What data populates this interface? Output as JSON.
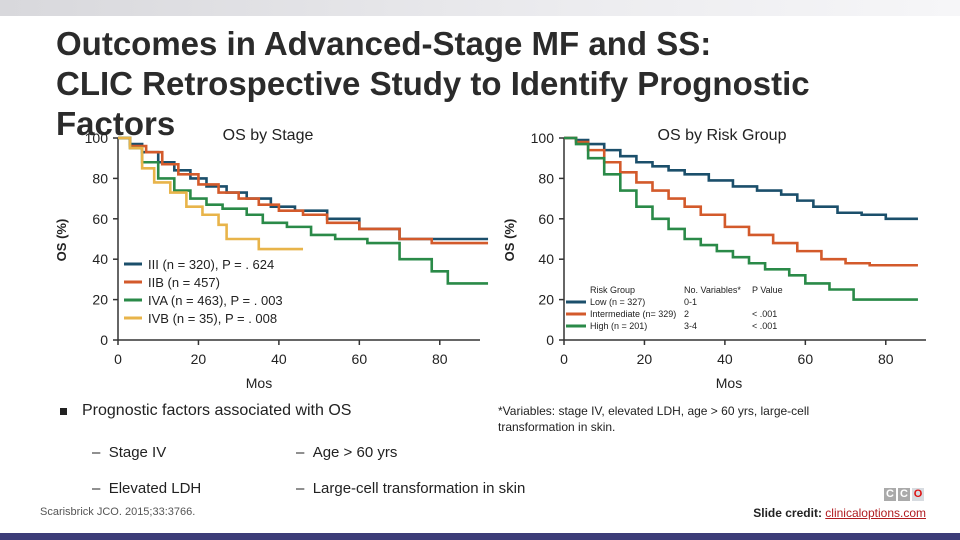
{
  "slide": {
    "title_line1": "Outcomes in Advanced-Stage MF and SS:",
    "title_line2": "CLIC Retrospective Study to Identify Prognostic Factors",
    "bullet_main": "Prognostic factors associated with OS",
    "sub_items": [
      "Stage IV",
      "Elevated LDH",
      "Age > 60 yrs",
      "Large-cell transformation in skin"
    ],
    "footnote": "*Variables: stage IV, elevated LDH, age > 60 yrs, large-cell transformation in skin.",
    "citation": "Scarisbrick JCO. 2015;33:3766.",
    "credit_label": "Slide credit:",
    "credit_link": "clinicaloptions.com",
    "logo_letters": [
      "C",
      "C",
      "O"
    ]
  },
  "colors": {
    "teal": "#1b4f6b",
    "orange": "#d35a2b",
    "green": "#2a8a48",
    "gold": "#e8b44a"
  },
  "chart_data": [
    {
      "type": "line",
      "title": "OS by Stage",
      "xlabel": "Mos",
      "ylabel": "OS (%)",
      "xlim": [
        0,
        90
      ],
      "ylim": [
        0,
        100
      ],
      "xticks": [
        0,
        20,
        40,
        60,
        80
      ],
      "yticks": [
        0,
        20,
        40,
        60,
        80,
        100
      ],
      "legend": [
        "III (n = 320), P = . 624",
        "IIB (n = 457)",
        "IVA (n = 463), P = . 003",
        "IVB (n = 35), P = . 008"
      ],
      "series": [
        {
          "name": "III (n = 320), P = . 624",
          "color": "#1b4f6b",
          "points": [
            [
              0,
              100
            ],
            [
              3,
              97
            ],
            [
              6,
              93
            ],
            [
              10,
              88
            ],
            [
              14,
              84
            ],
            [
              18,
              80
            ],
            [
              22,
              76
            ],
            [
              27,
              73
            ],
            [
              32,
              70
            ],
            [
              38,
              66
            ],
            [
              44,
              64
            ],
            [
              52,
              60
            ],
            [
              60,
              55
            ],
            [
              70,
              50
            ],
            [
              81,
              50
            ],
            [
              92,
              50
            ]
          ]
        },
        {
          "name": "IIB (n = 457)",
          "color": "#d35a2b",
          "points": [
            [
              0,
              100
            ],
            [
              3,
              96
            ],
            [
              7,
              93
            ],
            [
              11,
              87
            ],
            [
              15,
              82
            ],
            [
              20,
              77
            ],
            [
              25,
              73
            ],
            [
              30,
              70
            ],
            [
              35,
              67
            ],
            [
              40,
              64
            ],
            [
              46,
              62
            ],
            [
              52,
              58
            ],
            [
              60,
              55
            ],
            [
              70,
              50
            ],
            [
              78,
              48
            ],
            [
              92,
              48
            ]
          ]
        },
        {
          "name": "IVA (n = 463), P = . 003",
          "color": "#2a8a48",
          "points": [
            [
              0,
              100
            ],
            [
              3,
              95
            ],
            [
              6,
              88
            ],
            [
              10,
              80
            ],
            [
              14,
              74
            ],
            [
              18,
              70
            ],
            [
              22,
              67
            ],
            [
              26,
              65
            ],
            [
              32,
              62
            ],
            [
              36,
              58
            ],
            [
              42,
              56
            ],
            [
              48,
              52
            ],
            [
              54,
              50
            ],
            [
              62,
              48
            ],
            [
              70,
              40
            ],
            [
              78,
              34
            ],
            [
              82,
              28
            ],
            [
              92,
              28
            ]
          ]
        },
        {
          "name": "IVB (n = 35), P = . 008",
          "color": "#e8b44a",
          "points": [
            [
              0,
              100
            ],
            [
              3,
              95
            ],
            [
              6,
              85
            ],
            [
              9,
              78
            ],
            [
              13,
              73
            ],
            [
              17,
              66
            ],
            [
              21,
              62
            ],
            [
              25,
              57
            ],
            [
              27,
              50
            ],
            [
              35,
              45
            ],
            [
              42,
              45
            ],
            [
              46,
              45
            ]
          ]
        }
      ]
    },
    {
      "type": "line",
      "title": "OS by Risk Group",
      "xlabel": "Mos",
      "ylabel": "OS (%)",
      "xlim": [
        0,
        90
      ],
      "ylim": [
        0,
        100
      ],
      "xticks": [
        0,
        20,
        40,
        60,
        80
      ],
      "yticks": [
        0,
        20,
        40,
        60,
        80,
        100
      ],
      "legend_header": [
        "Risk Group",
        "No. Variables*",
        "P Value"
      ],
      "legend": [
        {
          "name": "Low (n = 327)",
          "vars": "0-1",
          "p": ""
        },
        {
          "name": "Intermediate (n= 329)",
          "vars": "2",
          "p": "< .001"
        },
        {
          "name": "High (n = 201)",
          "vars": "3-4",
          "p": "< .001"
        }
      ],
      "series": [
        {
          "name": "Low (n = 327)",
          "color": "#1b4f6b",
          "points": [
            [
              0,
              100
            ],
            [
              3,
              99
            ],
            [
              6,
              97
            ],
            [
              10,
              94
            ],
            [
              14,
              91
            ],
            [
              18,
              88
            ],
            [
              22,
              86
            ],
            [
              26,
              84
            ],
            [
              30,
              82
            ],
            [
              36,
              79
            ],
            [
              42,
              76
            ],
            [
              48,
              74
            ],
            [
              54,
              72
            ],
            [
              58,
              69
            ],
            [
              62,
              66
            ],
            [
              68,
              63
            ],
            [
              74,
              62
            ],
            [
              80,
              60
            ],
            [
              88,
              60
            ]
          ]
        },
        {
          "name": "Intermediate (n= 329)",
          "color": "#d35a2b",
          "points": [
            [
              0,
              100
            ],
            [
              3,
              98
            ],
            [
              6,
              94
            ],
            [
              10,
              88
            ],
            [
              14,
              83
            ],
            [
              18,
              78
            ],
            [
              22,
              74
            ],
            [
              26,
              70
            ],
            [
              30,
              66
            ],
            [
              34,
              62
            ],
            [
              40,
              56
            ],
            [
              46,
              52
            ],
            [
              52,
              48
            ],
            [
              58,
              44
            ],
            [
              64,
              40
            ],
            [
              70,
              38
            ],
            [
              76,
              37
            ],
            [
              88,
              37
            ]
          ]
        },
        {
          "name": "High (n = 201)",
          "color": "#2a8a48",
          "points": [
            [
              0,
              100
            ],
            [
              3,
              97
            ],
            [
              6,
              90
            ],
            [
              10,
              82
            ],
            [
              14,
              74
            ],
            [
              18,
              66
            ],
            [
              22,
              60
            ],
            [
              26,
              55
            ],
            [
              30,
              50
            ],
            [
              34,
              47
            ],
            [
              38,
              44
            ],
            [
              42,
              41
            ],
            [
              46,
              38
            ],
            [
              50,
              35
            ],
            [
              56,
              32
            ],
            [
              60,
              28
            ],
            [
              66,
              25
            ],
            [
              72,
              20
            ],
            [
              80,
              20
            ],
            [
              88,
              20
            ]
          ]
        }
      ]
    }
  ]
}
